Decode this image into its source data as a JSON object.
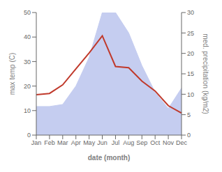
{
  "chart_data": {
    "type": "line",
    "xlabel": "date (month)",
    "ylabel": "max temp (C)",
    "y2label": "med. precipitation (kg/m2)",
    "categories": [
      "Jan",
      "Feb",
      "Mar",
      "Apr",
      "May",
      "Jun",
      "Jul",
      "Aug",
      "Sep",
      "Oct",
      "Nov",
      "Dec"
    ],
    "series": [
      {
        "type": "area",
        "color": "#c5cdf0",
        "axis": "y2",
        "values": [
          7.0,
          7.0,
          7.5,
          12.0,
          19.0,
          30.0,
          30.0,
          25.0,
          17.0,
          10.5,
          6.5,
          11.5
        ]
      },
      {
        "type": "line",
        "color": "#c0392b",
        "values": [
          16.5,
          17.0,
          20.5,
          27.0,
          33.5,
          40.5,
          28.0,
          27.5,
          22.0,
          18.0,
          12.0,
          9.0
        ]
      }
    ],
    "ylim": [
      0,
      50
    ],
    "yticks": [
      0,
      10,
      20,
      30,
      40,
      50
    ],
    "y2lim": [
      0,
      30
    ],
    "y2ticks": [
      0,
      5,
      10,
      15,
      20,
      25,
      30
    ],
    "grid": false
  }
}
